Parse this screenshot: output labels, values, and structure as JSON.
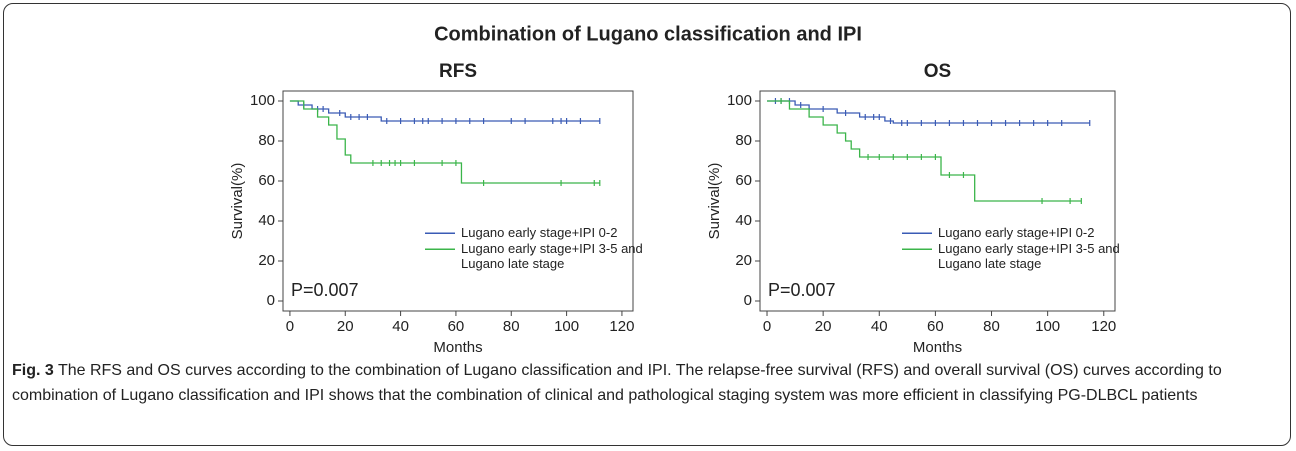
{
  "figure": {
    "title": "Combination of Lugano classification and IPI",
    "caption_label": "Fig. 3",
    "caption_text": "The RFS and OS curves according to the combination of Lugano classification and IPI. The relapse-free survival (RFS) and overall survival (OS) curves according to combination of Lugano classification and IPI shows that the combination of clinical and pathological staging system was more efficient in classifying PG-DLBCL patients"
  },
  "chart_data": [
    {
      "type": "line",
      "step": true,
      "title": "RFS",
      "xlabel": "Months",
      "ylabel": "Survival(%)",
      "annotation": "P=0.007",
      "xlim": [
        -2.5,
        124
      ],
      "ylim": [
        -5,
        105
      ],
      "xticks": [
        0,
        20,
        40,
        60,
        80,
        100,
        120
      ],
      "yticks": [
        0,
        20,
        40,
        60,
        80,
        100
      ],
      "legend": "lower right",
      "series": [
        {
          "name": "Lugano early stage+IPI 0-2",
          "color": "#3a5bb5",
          "x": [
            0,
            3,
            8,
            14,
            20,
            33,
            112
          ],
          "values": [
            100,
            98,
            96,
            94,
            92,
            90,
            90
          ],
          "censor_x": [
            5,
            10,
            12,
            18,
            22,
            25,
            28,
            35,
            40,
            45,
            48,
            50,
            55,
            60,
            65,
            70,
            80,
            85,
            95,
            98,
            100,
            105,
            112
          ],
          "censor_values": [
            98,
            96,
            96,
            94,
            92,
            92,
            92,
            90,
            90,
            90,
            90,
            90,
            90,
            90,
            90,
            90,
            90,
            90,
            90,
            90,
            90,
            90,
            90
          ]
        },
        {
          "name": "Lugano early stage+IPI 3-5 and Lugano late stage",
          "color": "#3bb54a",
          "x": [
            0,
            5,
            10,
            14,
            17,
            20,
            22,
            62,
            112
          ],
          "values": [
            100,
            96,
            92,
            88,
            81,
            73,
            69,
            59,
            59
          ],
          "censor_x": [
            30,
            33,
            36,
            38,
            40,
            45,
            55,
            60,
            70,
            98,
            110,
            112
          ],
          "censor_values": [
            69,
            69,
            69,
            69,
            69,
            69,
            69,
            69,
            59,
            59,
            59,
            59
          ]
        }
      ]
    },
    {
      "type": "line",
      "step": true,
      "title": "OS",
      "xlabel": "Months",
      "ylabel": "Survival(%)",
      "annotation": "P=0.007",
      "xlim": [
        -2.5,
        124
      ],
      "ylim": [
        -5,
        105
      ],
      "xticks": [
        0,
        20,
        40,
        60,
        80,
        100,
        120
      ],
      "yticks": [
        0,
        20,
        40,
        60,
        80,
        100
      ],
      "legend": "lower right",
      "series": [
        {
          "name": "Lugano early stage+IPI 0-2",
          "color": "#3a5bb5",
          "x": [
            0,
            10,
            15,
            25,
            33,
            42,
            45,
            115
          ],
          "values": [
            100,
            98,
            96,
            94,
            92,
            90,
            89,
            89
          ],
          "censor_x": [
            3,
            5,
            8,
            12,
            20,
            28,
            35,
            38,
            40,
            44,
            48,
            50,
            55,
            60,
            65,
            70,
            75,
            80,
            85,
            90,
            95,
            100,
            105,
            115
          ],
          "censor_values": [
            100,
            100,
            100,
            98,
            96,
            94,
            92,
            92,
            92,
            90,
            89,
            89,
            89,
            89,
            89,
            89,
            89,
            89,
            89,
            89,
            89,
            89,
            89,
            89
          ]
        },
        {
          "name": "Lugano early stage+IPI 3-5 and Lugano late stage",
          "color": "#3bb54a",
          "x": [
            0,
            8,
            15,
            20,
            25,
            28,
            30,
            33,
            62,
            74,
            112
          ],
          "values": [
            100,
            96,
            92,
            88,
            84,
            80,
            76,
            72,
            63,
            50,
            50
          ],
          "censor_x": [
            5,
            36,
            40,
            45,
            50,
            55,
            60,
            65,
            70,
            98,
            108,
            112
          ],
          "censor_values": [
            100,
            72,
            72,
            72,
            72,
            72,
            72,
            63,
            63,
            50,
            50,
            50
          ]
        }
      ]
    }
  ]
}
